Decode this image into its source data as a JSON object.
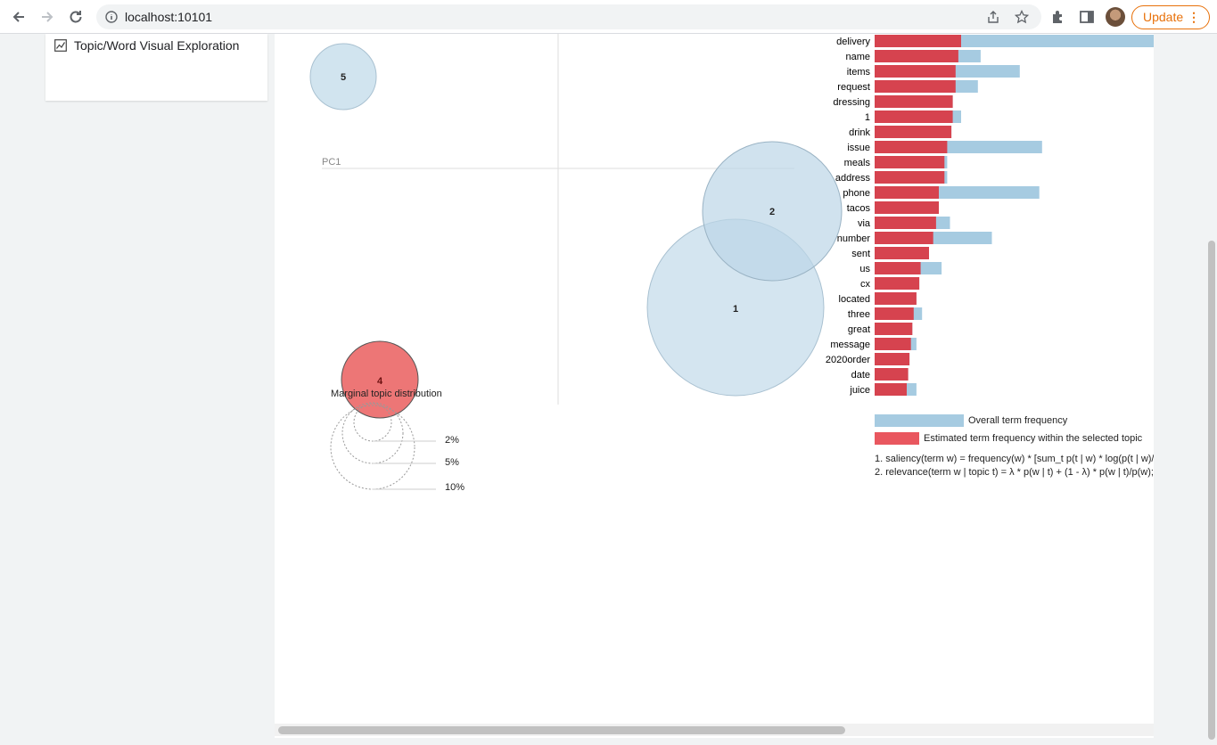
{
  "browser": {
    "url": "localhost:10101",
    "update_label": "Update"
  },
  "sidebar": {
    "item_label": "Topic/Word Visual Exploration"
  },
  "topic_map": {
    "pc_label": "PC1",
    "marginal_title": "Marginal topic distribution",
    "size_legend": [
      "2%",
      "5%",
      "10%"
    ],
    "topics": [
      {
        "id": "5",
        "selected": false
      },
      {
        "id": "2",
        "selected": false
      },
      {
        "id": "1",
        "selected": false
      },
      {
        "id": "4",
        "selected": true
      }
    ]
  },
  "terms": [
    {
      "term": "delivery",
      "overall": 1.0,
      "topic": 0.31
    },
    {
      "term": "name",
      "overall": 0.38,
      "topic": 0.3
    },
    {
      "term": "items",
      "overall": 0.52,
      "topic": 0.29
    },
    {
      "term": "request",
      "overall": 0.37,
      "topic": 0.29
    },
    {
      "term": "dressing",
      "overall": 0.28,
      "topic": 0.28
    },
    {
      "term": "1",
      "overall": 0.31,
      "topic": 0.28
    },
    {
      "term": "drink",
      "overall": 0.275,
      "topic": 0.275
    },
    {
      "term": "issue",
      "overall": 0.6,
      "topic": 0.26
    },
    {
      "term": "meals",
      "overall": 0.26,
      "topic": 0.25
    },
    {
      "term": "address",
      "overall": 0.26,
      "topic": 0.25
    },
    {
      "term": "phone",
      "overall": 0.59,
      "topic": 0.23
    },
    {
      "term": "tacos",
      "overall": 0.23,
      "topic": 0.23
    },
    {
      "term": "via",
      "overall": 0.27,
      "topic": 0.22
    },
    {
      "term": "number",
      "overall": 0.42,
      "topic": 0.21
    },
    {
      "term": "sent",
      "overall": 0.195,
      "topic": 0.195
    },
    {
      "term": "us",
      "overall": 0.24,
      "topic": 0.165
    },
    {
      "term": "cx",
      "overall": 0.16,
      "topic": 0.16
    },
    {
      "term": "located",
      "overall": 0.15,
      "topic": 0.15
    },
    {
      "term": "three",
      "overall": 0.17,
      "topic": 0.14
    },
    {
      "term": "great",
      "overall": 0.135,
      "topic": 0.135
    },
    {
      "term": "message",
      "overall": 0.15,
      "topic": 0.13
    },
    {
      "term": "2020order",
      "overall": 0.125,
      "topic": 0.125
    },
    {
      "term": "date",
      "overall": 0.12,
      "topic": 0.12
    },
    {
      "term": "juice",
      "overall": 0.15,
      "topic": 0.115
    }
  ],
  "legend": {
    "overall_label": "Overall term frequency",
    "topic_label": "Estimated term frequency within the selected topic",
    "note1": "1. saliency(term w) = frequency(w) * [sum_t p(t | w) * log(p(t | w)/",
    "note2": "2. relevance(term w | topic t) = λ * p(w | t) + (1 - λ) * p(w | t)/p(w);"
  },
  "colors": {
    "overall": "#a6cbe1",
    "topic": "#d6434f",
    "topic_light": "#e9575f",
    "circle": "#c9dfec",
    "circle_selected": "#ec6f6f"
  }
}
